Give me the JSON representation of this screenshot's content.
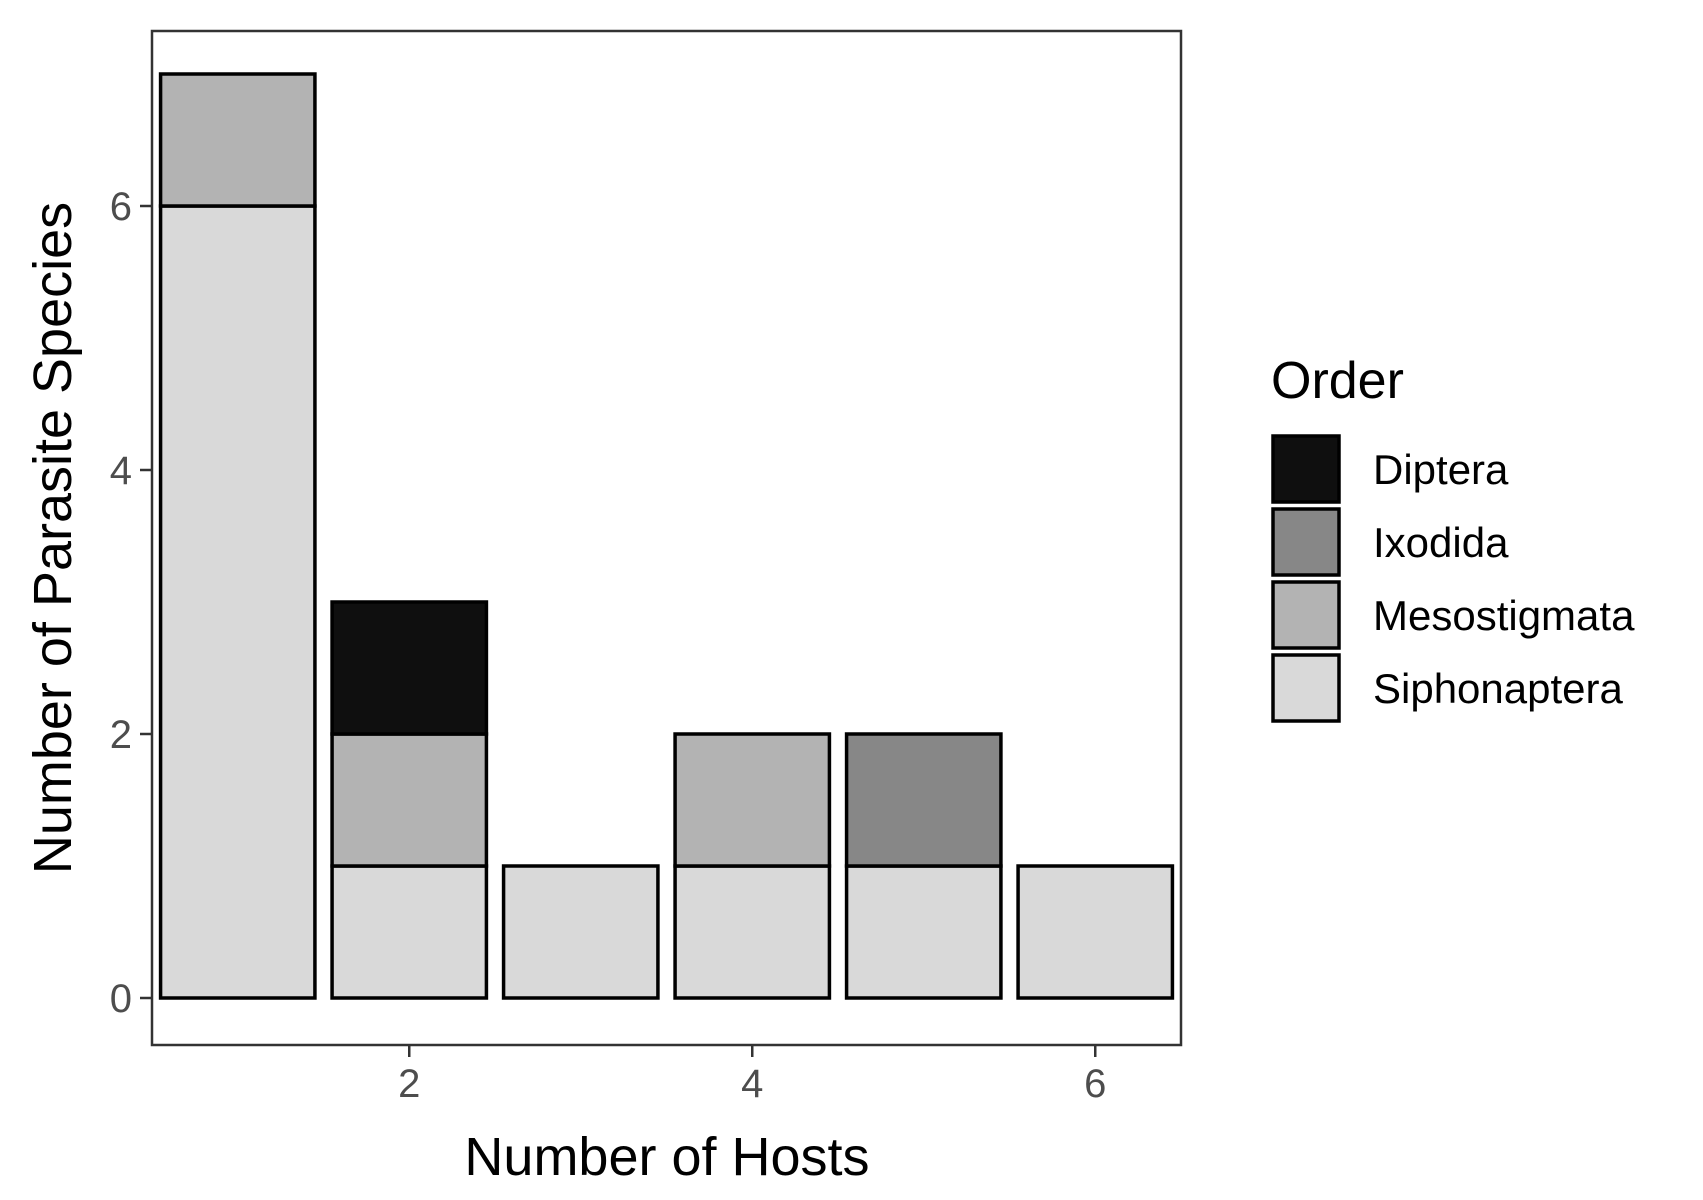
{
  "chart_data": {
    "type": "bar",
    "stacked": true,
    "categories": [
      1,
      2,
      3,
      4,
      5,
      6
    ],
    "series": [
      {
        "name": "Siphonaptera",
        "values": [
          6,
          1,
          1,
          1,
          1,
          1
        ]
      },
      {
        "name": "Mesostigmata",
        "values": [
          1,
          1,
          0,
          1,
          0,
          0
        ]
      },
      {
        "name": "Ixodida",
        "values": [
          0,
          0,
          0,
          0,
          1,
          0
        ]
      },
      {
        "name": "Diptera",
        "values": [
          0,
          1,
          0,
          0,
          0,
          0
        ]
      }
    ],
    "colors": {
      "Diptera": "#0f0f0f",
      "Ixodida": "#878787",
      "Mesostigmata": "#b3b3b3",
      "Siphonaptera": "#d9d9d9"
    },
    "xlabel": "Number of Hosts",
    "ylabel": "Number of Parasite Species",
    "xticks": [
      "2",
      "4",
      "6"
    ],
    "yticks": [
      "0",
      "2",
      "4",
      "6"
    ],
    "xlim": [
      0.5,
      6.5
    ],
    "ylim": [
      0,
      7
    ],
    "legend": {
      "title": "Order",
      "position": "right",
      "entries": [
        "Diptera",
        "Ixodida",
        "Mesostigmata",
        "Siphonaptera"
      ]
    },
    "grid": false
  }
}
